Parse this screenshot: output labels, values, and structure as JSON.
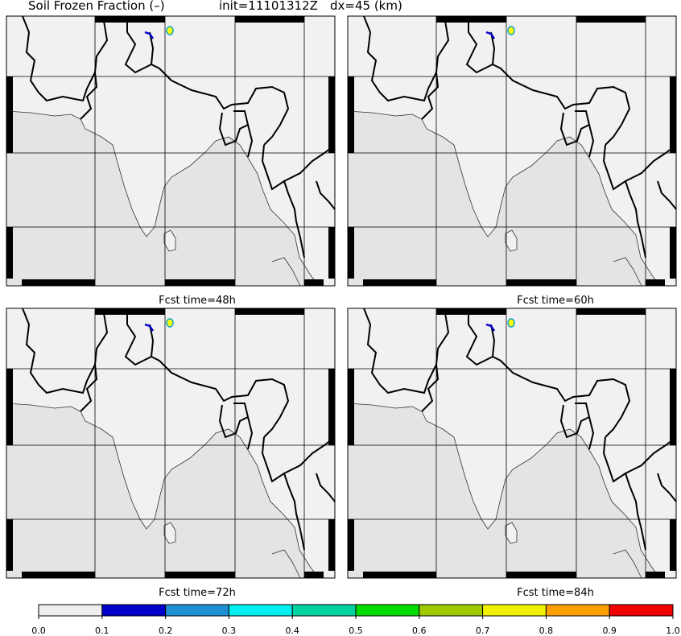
{
  "title": {
    "variable": "Soil Frozen Fraction (–)",
    "init": "init=11101312Z",
    "resolution": "dx=45 (km)"
  },
  "panels": [
    {
      "caption": "Fcst time=48h"
    },
    {
      "caption": "Fcst time=60h"
    },
    {
      "caption": "Fcst time=72h"
    },
    {
      "caption": "Fcst time=84h"
    }
  ],
  "colorbar": {
    "colors": [
      "#eeeeee",
      "#0000c8",
      "#1e8fd2",
      "#00f0f0",
      "#00d2a0",
      "#00dc00",
      "#a0c800",
      "#f0f000",
      "#ffa000",
      "#f00000"
    ],
    "ticks": [
      {
        "value": 0,
        "label": "0.0"
      },
      {
        "value": 0.1,
        "label": "0.1"
      },
      {
        "value": 0.2,
        "label": "0.2"
      },
      {
        "value": 0.3,
        "label": "0.3"
      },
      {
        "value": 0.4,
        "label": "0.4"
      },
      {
        "value": 0.5,
        "label": "0.5"
      },
      {
        "value": 0.6,
        "label": "0.6"
      },
      {
        "value": 0.7,
        "label": "0.7"
      },
      {
        "value": 0.8,
        "label": "0.8"
      },
      {
        "value": 0.9,
        "label": "0.9"
      },
      {
        "value": 1,
        "label": "1.0"
      }
    ]
  }
}
